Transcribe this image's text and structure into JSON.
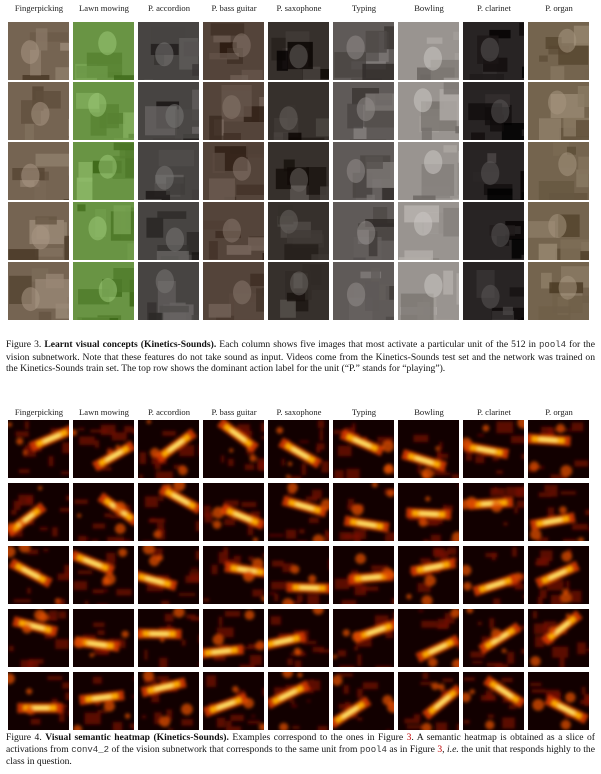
{
  "columns": [
    "Fingerpicking",
    "Lawn mowing",
    "P. accordion",
    "P. bass guitar",
    "P. saxophone",
    "Typing",
    "Bowling",
    "P. clarinet",
    "P. organ"
  ],
  "figure3": {
    "caption_label": "Figure 3.",
    "caption_title": "Learnt visual concepts (Kinetics-Sounds).",
    "caption_text_1": "Each column shows five images that most activate a particular unit of the 512 in",
    "caption_code": "pool4",
    "caption_text_2": "for the vision subnetwork. Note that these features do not take sound as input. Videos come from the Kinetics-Sounds test set and the network was trained on the Kinetics-Sounds train set. The top row shows the dominant action label for the unit (“P.” stands for “playing”).",
    "rows": 5,
    "palette": [
      "#6b5a48",
      "#5f8a3a",
      "#3d3a38",
      "#4a3a30",
      "#2c2622",
      "#55504e",
      "#8f8a86",
      "#1e1a1a",
      "#6a5a44"
    ]
  },
  "figure4": {
    "caption_label": "Figure 4.",
    "caption_title": "Visual semantic heatmap (Kinetics-Sounds).",
    "caption_text_1": "Examples correspond to the ones in Figure",
    "ref_1": "3",
    "caption_text_2": ". A semantic heatmap is obtained as a slice of activations from",
    "caption_code_1": "conv4_2",
    "caption_text_3": "of the vision subnetwork that corresponds to the same unit from",
    "caption_code_2": "pool4",
    "caption_text_4": "as in Figure",
    "ref_2": "3",
    "caption_text_5": ",",
    "caption_ie": "i.e.",
    "caption_text_6": "the unit that responds highly to the class in question.",
    "rows": 5
  }
}
